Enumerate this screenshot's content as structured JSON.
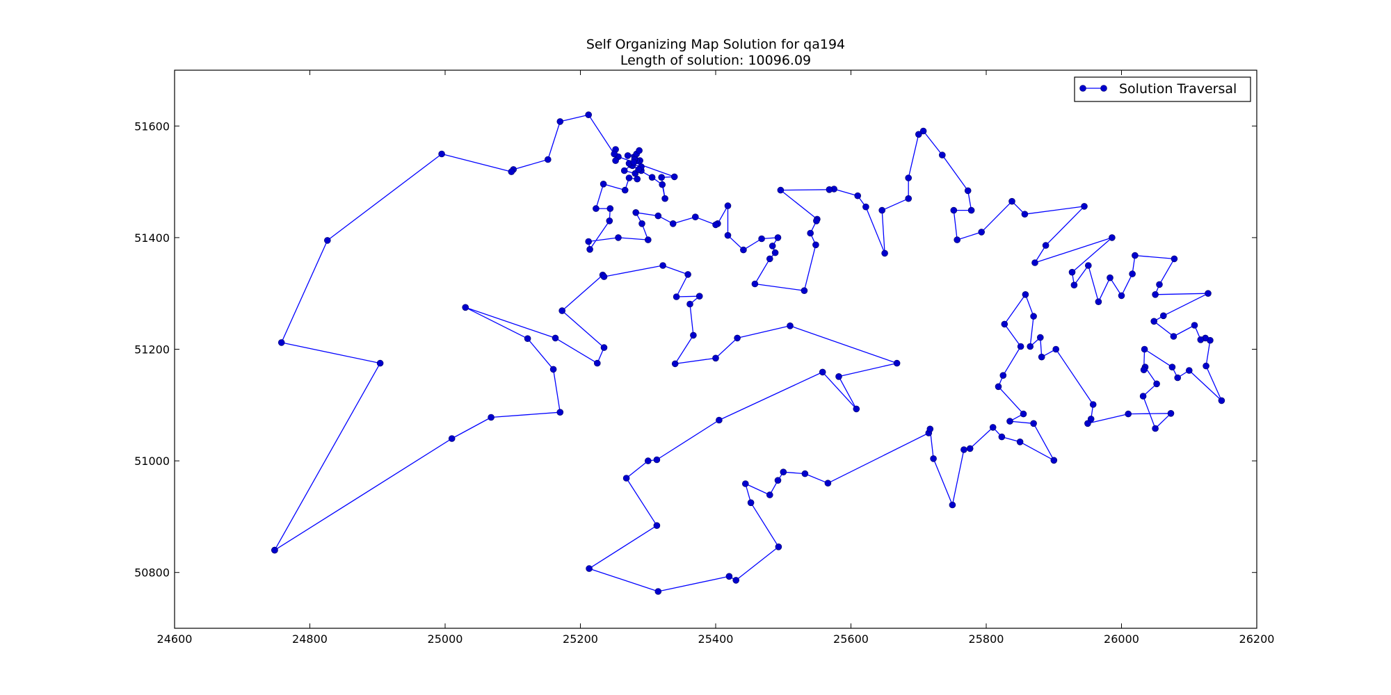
{
  "chart_data": {
    "type": "line",
    "title": "Self Organizing Map Solution for qa194",
    "subtitle": "Length of solution: 10096.09",
    "xlabel": "",
    "ylabel": "",
    "xlim": [
      24600,
      26200
    ],
    "ylim": [
      50700,
      51700
    ],
    "x_ticks": [
      24600,
      24800,
      25000,
      25200,
      25400,
      25600,
      25800,
      26000,
      26200
    ],
    "y_ticks": [
      50800,
      51000,
      51200,
      51400,
      51600
    ],
    "grid": false,
    "legend_position": "top-right",
    "color": "#0000ff",
    "series": [
      {
        "name": "Solution Traversal",
        "points": [
          [
            24748,
            50840
          ],
          [
            25010,
            51040
          ],
          [
            25068,
            51078
          ],
          [
            25170,
            51087
          ],
          [
            25160,
            51164
          ],
          [
            25122,
            51219
          ],
          [
            25030,
            51275
          ],
          [
            25163,
            51220
          ],
          [
            25225,
            51175
          ],
          [
            25235,
            51203
          ],
          [
            25173,
            51269
          ],
          [
            25233,
            51333
          ],
          [
            25235,
            51330
          ],
          [
            25322,
            51350
          ],
          [
            25359,
            51334
          ],
          [
            25342,
            51294
          ],
          [
            25376,
            51295
          ],
          [
            25362,
            51281
          ],
          [
            25367,
            51225
          ],
          [
            25340,
            51174
          ],
          [
            25400,
            51184
          ],
          [
            25432,
            51220
          ],
          [
            25510,
            51242
          ],
          [
            25668,
            51175
          ],
          [
            25582,
            51151
          ],
          [
            25608,
            51093
          ],
          [
            25558,
            51159
          ],
          [
            25405,
            51073
          ],
          [
            25313,
            51002
          ],
          [
            25300,
            51000
          ],
          [
            25268,
            50969
          ],
          [
            25313,
            50884
          ],
          [
            25213,
            50807
          ],
          [
            25315,
            50766
          ],
          [
            25420,
            50793
          ],
          [
            25430,
            50786
          ],
          [
            25493,
            50846
          ],
          [
            25452,
            50925
          ],
          [
            25444,
            50959
          ],
          [
            25480,
            50939
          ],
          [
            25492,
            50965
          ],
          [
            25500,
            50980
          ],
          [
            25532,
            50977
          ],
          [
            25566,
            50960
          ],
          [
            25715,
            51050
          ],
          [
            25717,
            51057
          ],
          [
            25722,
            51004
          ],
          [
            25750,
            50921
          ],
          [
            25767,
            51020
          ],
          [
            25776,
            51022
          ],
          [
            25810,
            51060
          ],
          [
            25823,
            51043
          ],
          [
            25850,
            51034
          ],
          [
            25900,
            51001
          ],
          [
            25870,
            51067
          ],
          [
            25835,
            51071
          ],
          [
            25855,
            51084
          ],
          [
            25818,
            51133
          ],
          [
            25825,
            51153
          ],
          [
            25851,
            51205
          ],
          [
            25827,
            51245
          ],
          [
            25858,
            51298
          ],
          [
            25870,
            51259
          ],
          [
            25865,
            51205
          ],
          [
            25880,
            51221
          ],
          [
            25882,
            51186
          ],
          [
            25903,
            51200
          ],
          [
            25958,
            51101
          ],
          [
            25955,
            51075
          ],
          [
            25950,
            51067
          ],
          [
            26010,
            51084
          ],
          [
            26073,
            51085
          ],
          [
            26050,
            51058
          ],
          [
            26032,
            51116
          ],
          [
            26052,
            51138
          ],
          [
            26035,
            51168
          ],
          [
            26033,
            51163
          ],
          [
            26034,
            51200
          ],
          [
            26075,
            51168
          ],
          [
            26083,
            51149
          ],
          [
            26100,
            51162
          ],
          [
            26148,
            51108
          ],
          [
            26125,
            51170
          ],
          [
            26131,
            51216
          ],
          [
            26124,
            51220
          ],
          [
            26117,
            51217
          ],
          [
            26108,
            51243
          ],
          [
            26077,
            51223
          ],
          [
            26048,
            51250
          ],
          [
            26062,
            51260
          ],
          [
            26128,
            51300
          ],
          [
            26050,
            51298
          ],
          [
            26056,
            51316
          ],
          [
            26078,
            51362
          ],
          [
            26020,
            51368
          ],
          [
            26016,
            51335
          ],
          [
            26000,
            51296
          ],
          [
            25983,
            51328
          ],
          [
            25966,
            51285
          ],
          [
            25951,
            51350
          ],
          [
            25930,
            51315
          ],
          [
            25927,
            51338
          ],
          [
            25986,
            51400
          ],
          [
            25872,
            51355
          ],
          [
            25888,
            51386
          ],
          [
            25945,
            51456
          ],
          [
            25857,
            51442
          ],
          [
            25838,
            51465
          ],
          [
            25793,
            51410
          ],
          [
            25757,
            51396
          ],
          [
            25752,
            51449
          ],
          [
            25778,
            51449
          ],
          [
            25773,
            51484
          ],
          [
            25735,
            51548
          ],
          [
            25707,
            51591
          ],
          [
            25700,
            51585
          ],
          [
            25685,
            51507
          ],
          [
            25685,
            51470
          ],
          [
            25646,
            51449
          ],
          [
            25650,
            51372
          ],
          [
            25622,
            51455
          ],
          [
            25610,
            51475
          ],
          [
            25575,
            51487
          ],
          [
            25568,
            51486
          ],
          [
            25496,
            51485
          ],
          [
            25550,
            51433
          ],
          [
            25549,
            51430
          ],
          [
            25540,
            51408
          ],
          [
            25548,
            51387
          ],
          [
            25531,
            51305
          ],
          [
            25458,
            51317
          ],
          [
            25480,
            51362
          ],
          [
            25488,
            51373
          ],
          [
            25484,
            51385
          ],
          [
            25492,
            51400
          ],
          [
            25468,
            51398
          ],
          [
            25441,
            51378
          ],
          [
            25418,
            51404
          ],
          [
            25418,
            51457
          ],
          [
            25403,
            51425
          ],
          [
            25400,
            51423
          ],
          [
            25370,
            51437
          ],
          [
            25337,
            51425
          ],
          [
            25315,
            51439
          ],
          [
            25282,
            51445
          ],
          [
            25291,
            51425
          ],
          [
            25300,
            51396
          ],
          [
            25256,
            51400
          ],
          [
            25212,
            51393
          ],
          [
            25214,
            51379
          ],
          [
            25243,
            51430
          ],
          [
            25244,
            51452
          ],
          [
            25223,
            51452
          ],
          [
            25234,
            51496
          ],
          [
            25266,
            51485
          ],
          [
            25272,
            51507
          ],
          [
            25284,
            51505
          ],
          [
            25281,
            51515
          ],
          [
            25265,
            51520
          ],
          [
            25275,
            51530
          ],
          [
            25290,
            51520
          ],
          [
            25288,
            51538
          ],
          [
            25280,
            51545
          ],
          [
            25270,
            51547
          ],
          [
            25283,
            51550
          ],
          [
            25287,
            51556
          ],
          [
            25283,
            51538
          ],
          [
            25277,
            51529
          ],
          [
            25280,
            51540
          ],
          [
            25272,
            51533
          ],
          [
            25290,
            51527
          ],
          [
            25286,
            51522
          ],
          [
            25306,
            51508
          ],
          [
            25321,
            51495
          ],
          [
            25325,
            51470
          ],
          [
            25320,
            51508
          ],
          [
            25339,
            51509
          ],
          [
            25279,
            51535
          ],
          [
            25256,
            51545
          ],
          [
            25252,
            51558
          ],
          [
            25252,
            51538
          ],
          [
            25250,
            51550
          ],
          [
            25212,
            51620
          ],
          [
            25170,
            51608
          ],
          [
            25152,
            51540
          ],
          [
            25101,
            51522
          ],
          [
            25098,
            51518
          ],
          [
            24995,
            51550
          ],
          [
            24826,
            51395
          ],
          [
            24758,
            51212
          ],
          [
            24904,
            51175
          ],
          [
            24748,
            50840
          ]
        ]
      }
    ]
  }
}
